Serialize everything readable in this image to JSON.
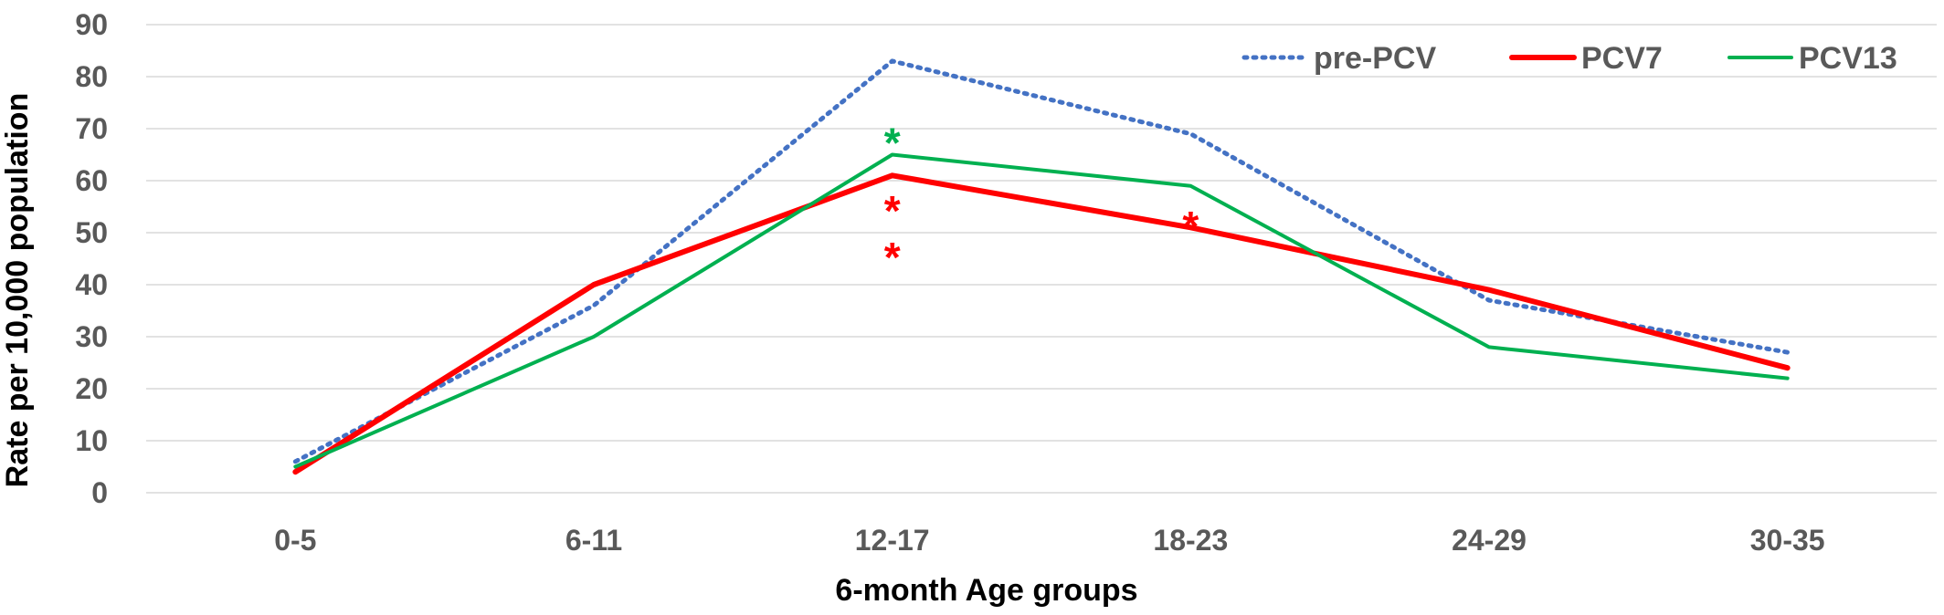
{
  "chart_data": {
    "type": "line",
    "categories": [
      "0-5",
      "6-11",
      "12-17",
      "18-23",
      "24-29",
      "30-35"
    ],
    "series": [
      {
        "name": "pre-PCV",
        "values": [
          6,
          36,
          83,
          69,
          37,
          27
        ],
        "color": "#4472C4",
        "style": "dotted"
      },
      {
        "name": "PCV7",
        "values": [
          4,
          40,
          61,
          51,
          39,
          24
        ],
        "color": "#FF0000",
        "style": "solid-thick"
      },
      {
        "name": "PCV13",
        "values": [
          5,
          30,
          65,
          59,
          28,
          22
        ],
        "color": "#00B050",
        "style": "solid"
      }
    ],
    "annotations": [
      {
        "text": "*",
        "category": "12-17",
        "y": 69,
        "color": "#00B050"
      },
      {
        "text": "*",
        "category": "12-17",
        "y": 56,
        "color": "#FF0000"
      },
      {
        "text": "*",
        "category": "12-17",
        "y": 47,
        "color": "#FF0000"
      },
      {
        "text": "*",
        "category": "18-23",
        "y": 53,
        "color": "#FF0000"
      }
    ],
    "title": "",
    "xlabel": "6-month Age groups",
    "ylabel": "Rate per 10,000 population",
    "ylim": [
      0,
      90
    ],
    "yticks": [
      "0",
      "10",
      "20",
      "30",
      "40",
      "50",
      "60",
      "70",
      "80",
      "90"
    ],
    "grid": true,
    "legend": "top-right"
  }
}
